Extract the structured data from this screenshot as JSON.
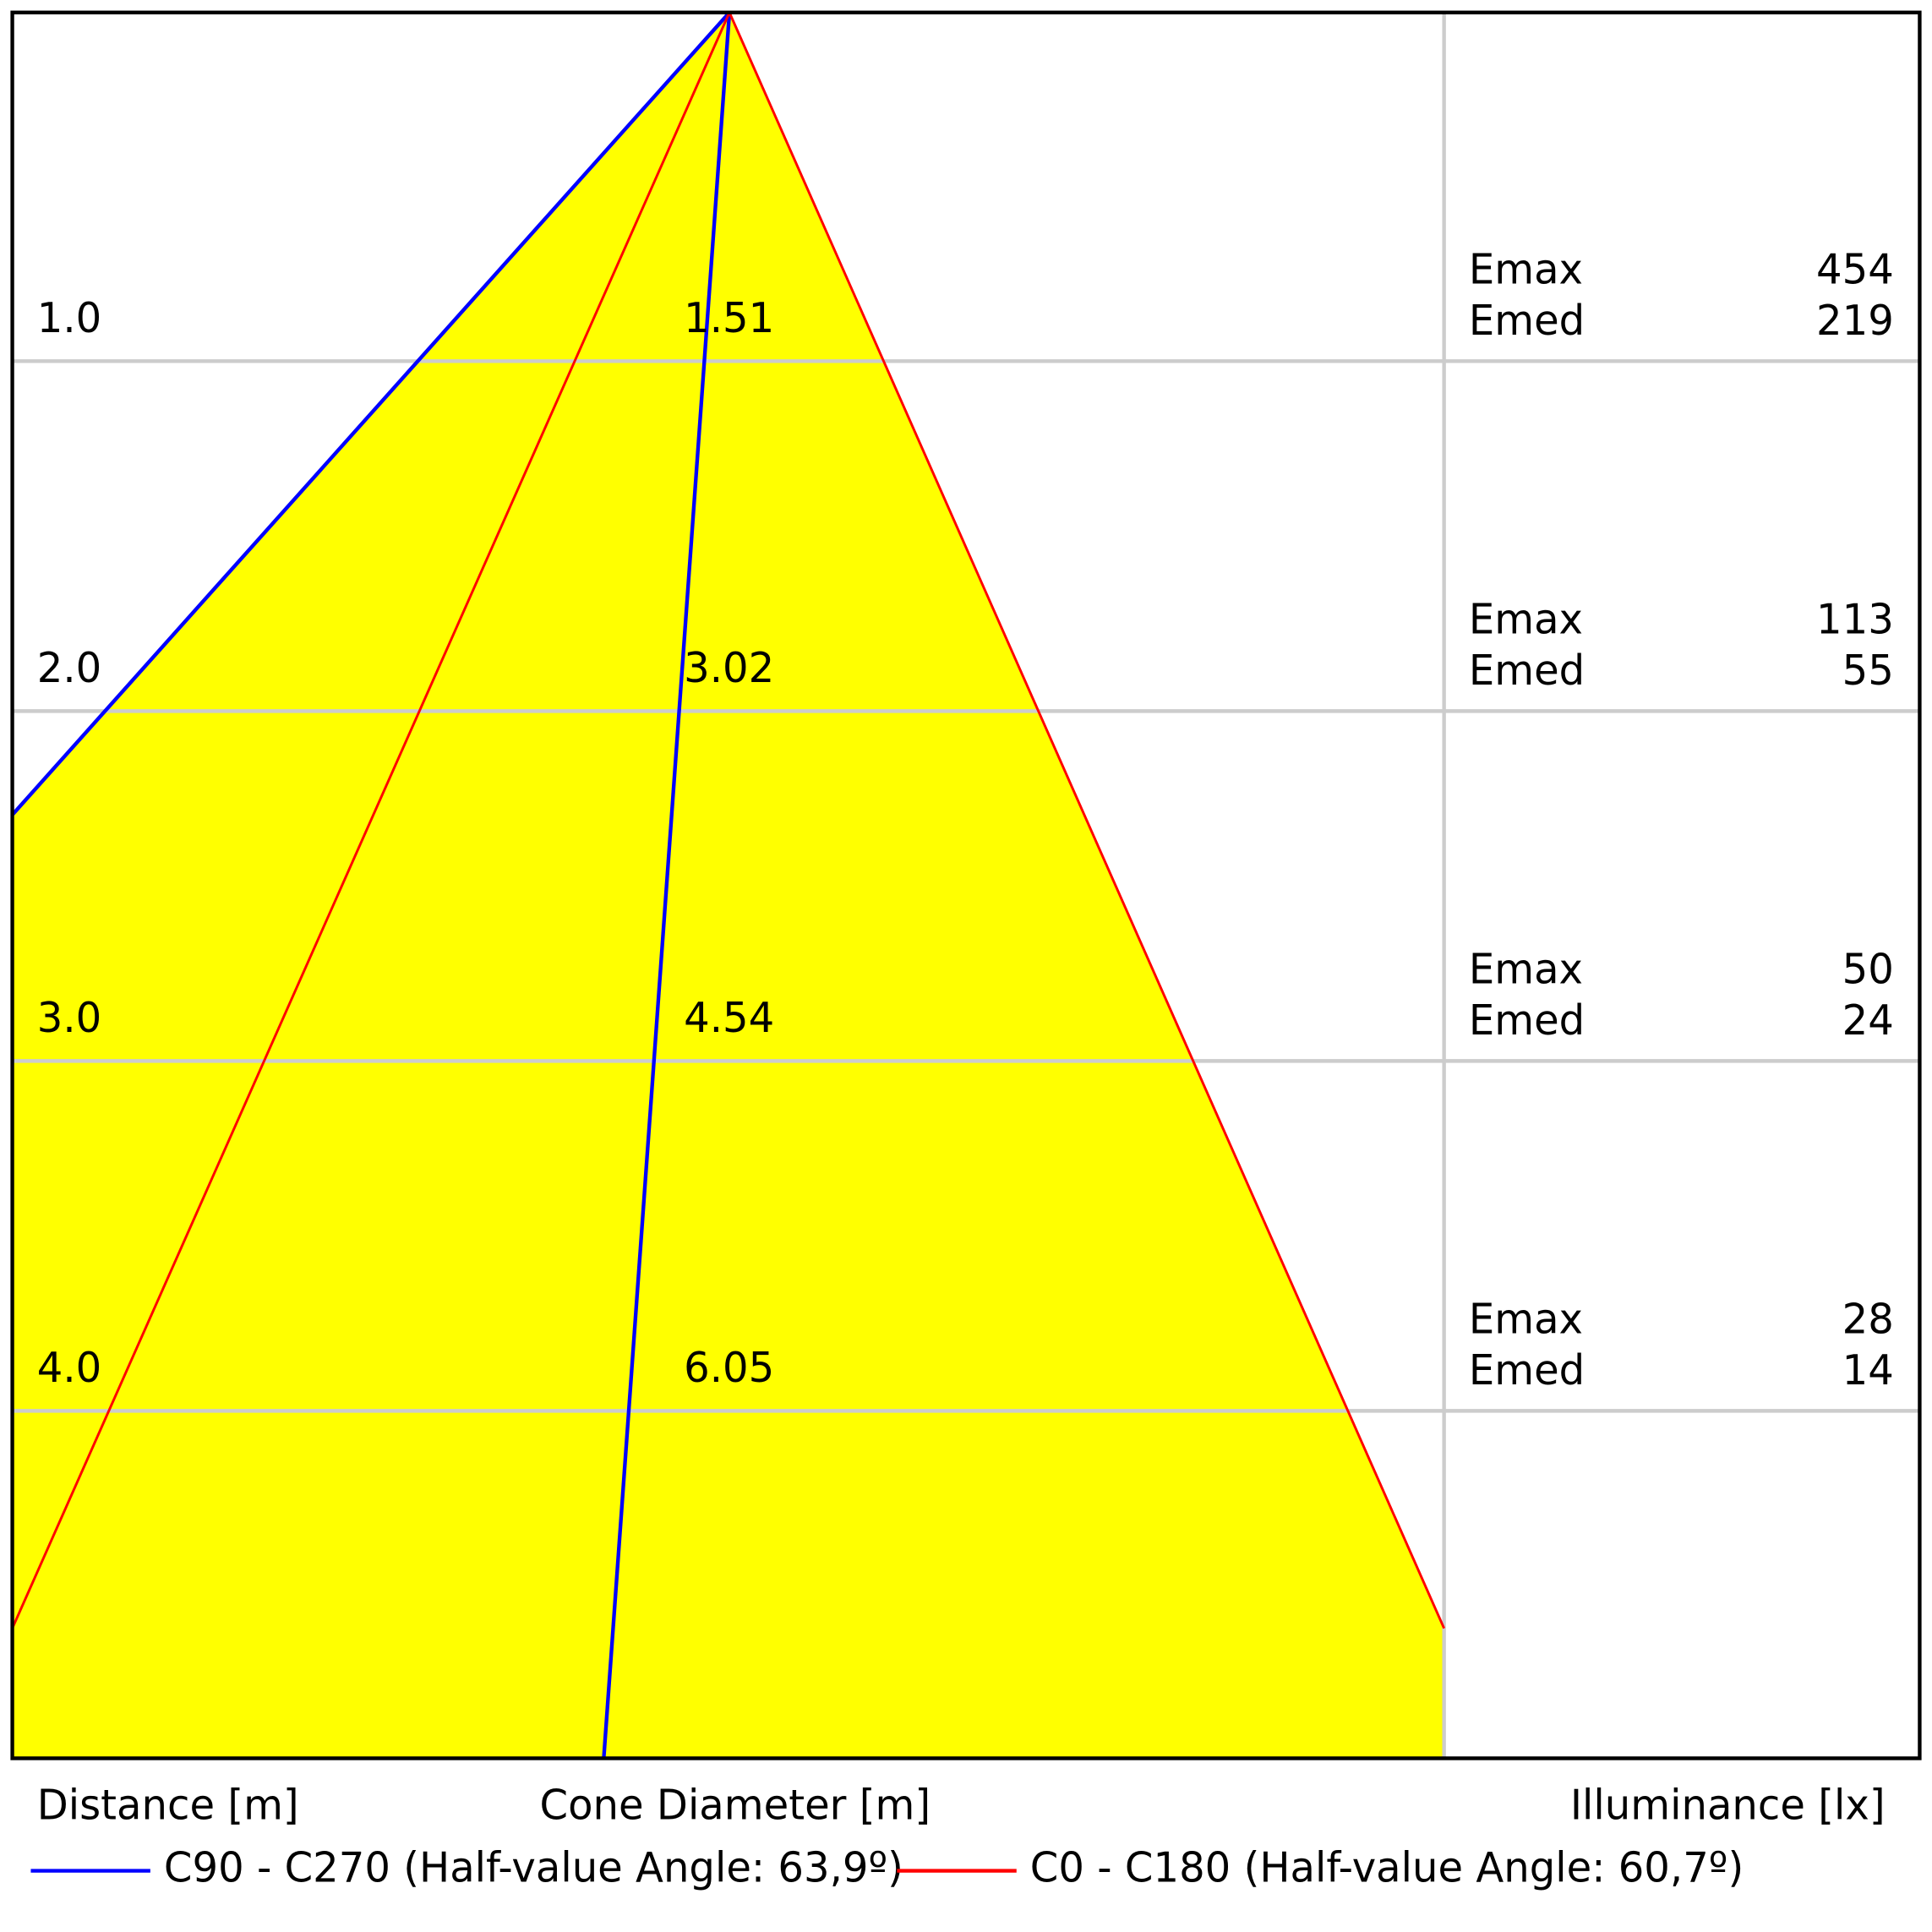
{
  "rows": [
    {
      "distance": "1.0",
      "diameter": 1.51,
      "emax_label": "Emax",
      "emax": 454,
      "emed_label": "Emed",
      "emed": 219
    },
    {
      "distance": "2.0",
      "diameter": 3.02,
      "emax_label": "Emax",
      "emax": 113,
      "emed_label": "Emed",
      "emed": 55
    },
    {
      "distance": "3.0",
      "diameter": 4.54,
      "emax_label": "Emax",
      "emax": 50,
      "emed_label": "Emed",
      "emed": 24
    },
    {
      "distance": "4.0",
      "diameter": 6.05,
      "emax_label": "Emax",
      "emax": 28,
      "emed_label": "Emed",
      "emed": 14
    }
  ],
  "axis_labels": {
    "distance": "Distance [m]",
    "diameter": "Cone Diameter [m]",
    "illuminance": "Illuminance [lx]"
  },
  "legend": [
    {
      "label": "C90 - C270 (Half-value Angle: 63,9º)",
      "color": "#0000ff"
    },
    {
      "label": "C0 - C180 (Half-value Angle: 60,7º)",
      "color": "#ff0000"
    }
  ]
}
